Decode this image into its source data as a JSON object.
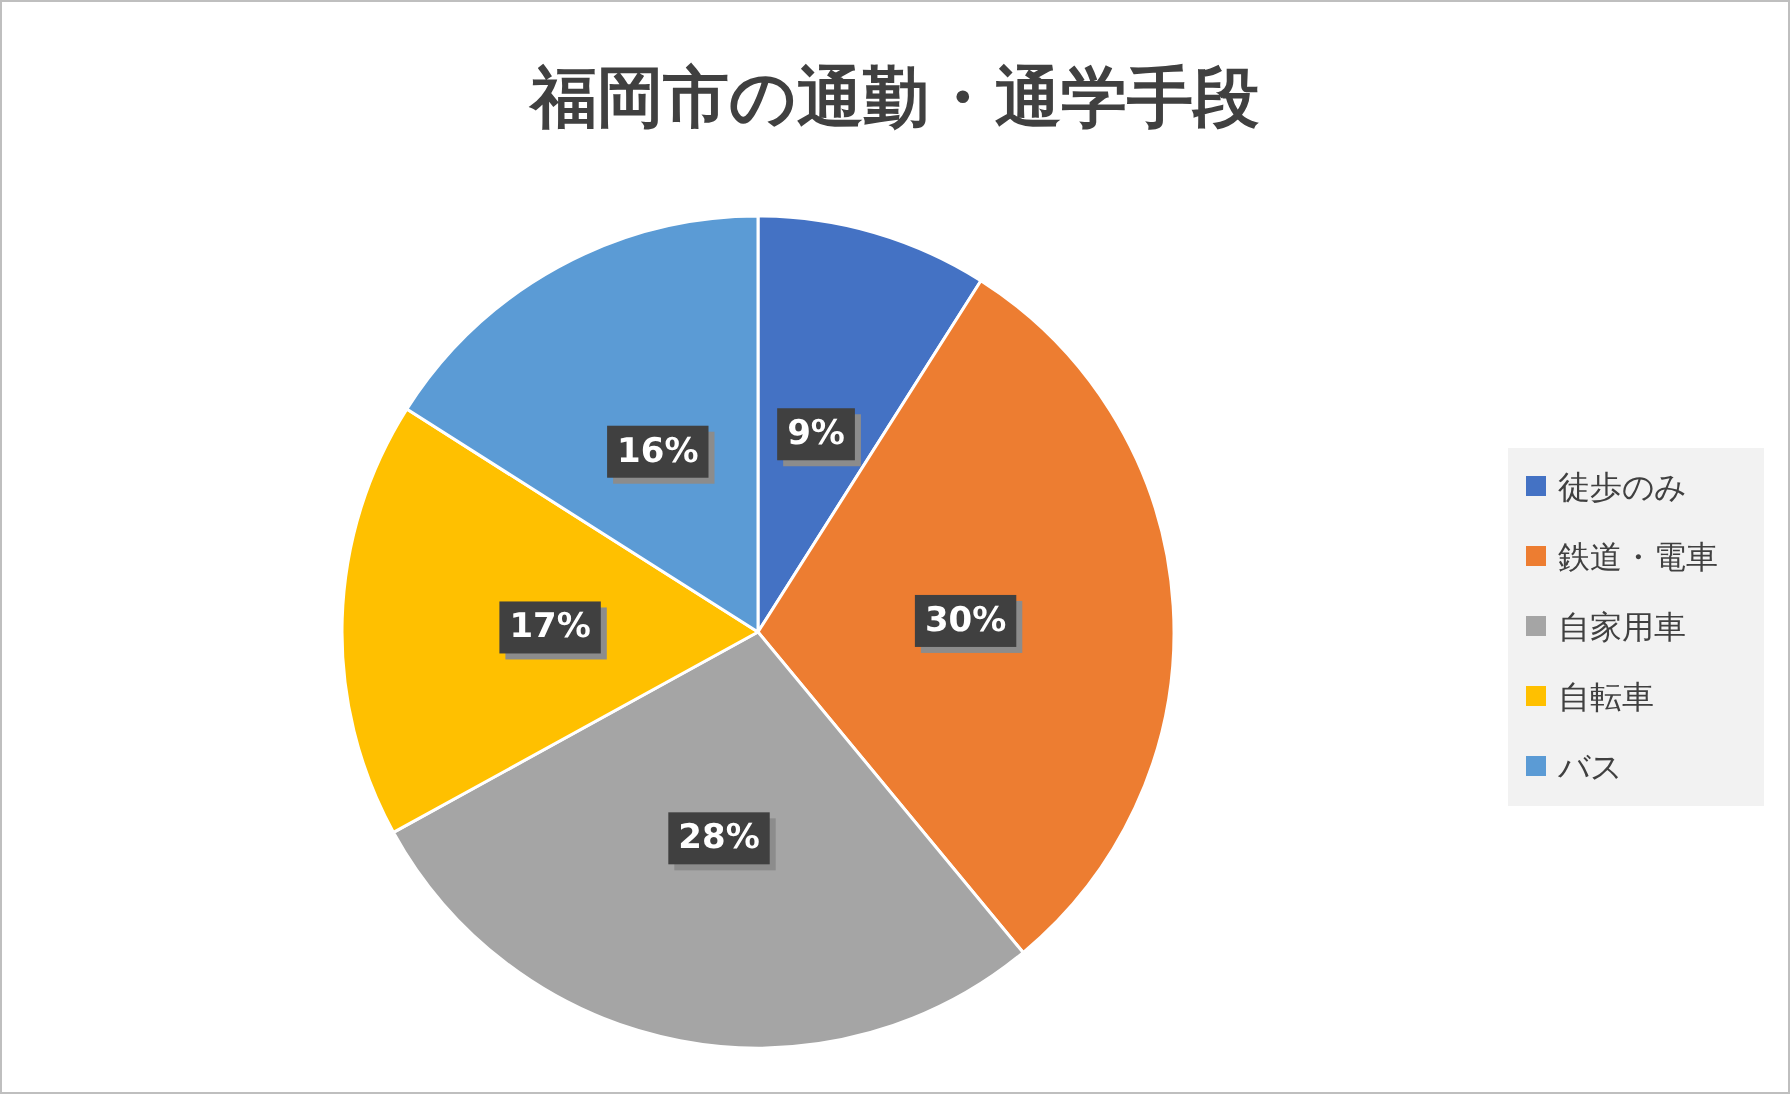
{
  "chart_data": {
    "type": "pie",
    "title": "福岡市の通勤・通学手段",
    "categories": [
      "徒歩のみ",
      "鉄道・電車",
      "自家用車",
      "自転車",
      "バス"
    ],
    "values": [
      9,
      30,
      28,
      17,
      16
    ],
    "colors": [
      "#4472c4",
      "#ed7d31",
      "#a5a5a5",
      "#ffc000",
      "#5b9bd5"
    ],
    "value_labels": [
      "9%",
      "30%",
      "28%",
      "17%",
      "16%"
    ],
    "legend": "right"
  }
}
